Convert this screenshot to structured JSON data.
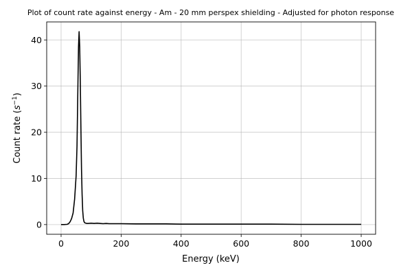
{
  "chart_data": {
    "type": "line",
    "title": "Plot of count rate against energy - Am - 20 mm perspex shielding - Adjusted for photon response",
    "xlabel": "Energy (keV)",
    "ylabel": "Count rate",
    "ylabel_unit_base": "s",
    "ylabel_unit_exp": "−1",
    "xlim": [
      -48,
      1048
    ],
    "ylim": [
      -2.1,
      43.9
    ],
    "xticks": [
      0,
      200,
      400,
      600,
      800,
      1000
    ],
    "yticks": [
      0,
      10,
      20,
      30,
      40
    ],
    "grid": true,
    "color": "#000000",
    "x": [
      0,
      10,
      20,
      25,
      30,
      35,
      40,
      45,
      50,
      53,
      56,
      58,
      60,
      62,
      64,
      66,
      68,
      70,
      72,
      74,
      76,
      78,
      80,
      85,
      90,
      100,
      110,
      120,
      130,
      140,
      150,
      160,
      180,
      200,
      250,
      300,
      350,
      400,
      500,
      600,
      700,
      800,
      900,
      1000
    ],
    "y": [
      0,
      0,
      0.05,
      0.2,
      0.6,
      1.3,
      2.5,
      5.5,
      10.5,
      17,
      30,
      38.5,
      41.8,
      38.5,
      31,
      21,
      12,
      6.5,
      3,
      1.4,
      0.7,
      0.45,
      0.35,
      0.25,
      0.25,
      0.3,
      0.25,
      0.3,
      0.25,
      0.2,
      0.25,
      0.2,
      0.2,
      0.2,
      0.15,
      0.15,
      0.15,
      0.1,
      0.1,
      0.1,
      0.1,
      0.05,
      0.05,
      0.05
    ]
  }
}
